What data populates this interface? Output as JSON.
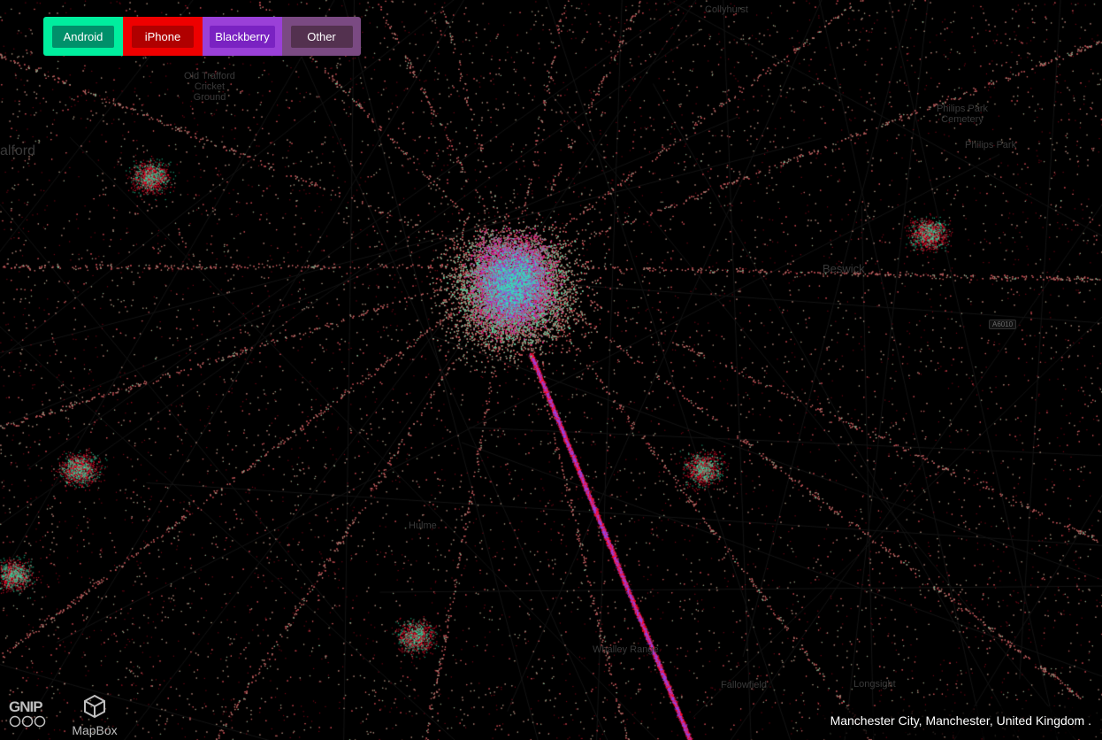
{
  "legend": {
    "items": [
      {
        "key": "android",
        "label": "Android",
        "bg": "#00ee9e",
        "btn": "#00906a"
      },
      {
        "key": "iphone",
        "label": "iPhone",
        "bg": "#ee0000",
        "btn": "#b00000"
      },
      {
        "key": "blackberry",
        "label": "Blackberry",
        "bg": "#9a40d8",
        "btn": "#7a22c2"
      },
      {
        "key": "other",
        "label": "Other",
        "bg": "#7a4a82",
        "btn": "#53314f"
      }
    ]
  },
  "colors": {
    "background": "#000000",
    "android": "#2ef0b0",
    "iphone": "#ff1030",
    "blackberry": "#8a4cff"
  },
  "map_labels": {
    "collyhurst": "Collyhurst",
    "cricket_ground": "Old Trafford Cricket Ground",
    "philips_park_cemetery": "Philips Park Cemetery",
    "philips_park": "Philips Park",
    "salford": "alford",
    "beswick": "Beswick",
    "longsight": "Longsight",
    "whalley": "Whalley Range",
    "fallowfield": "Fallowfield",
    "hulme": "Hulme"
  },
  "road_badge": "A6010",
  "attribution": {
    "gnip": "GNIP",
    "mapbox": "MapBox"
  },
  "location": "Manchester City, Manchester, United Kingdom ."
}
